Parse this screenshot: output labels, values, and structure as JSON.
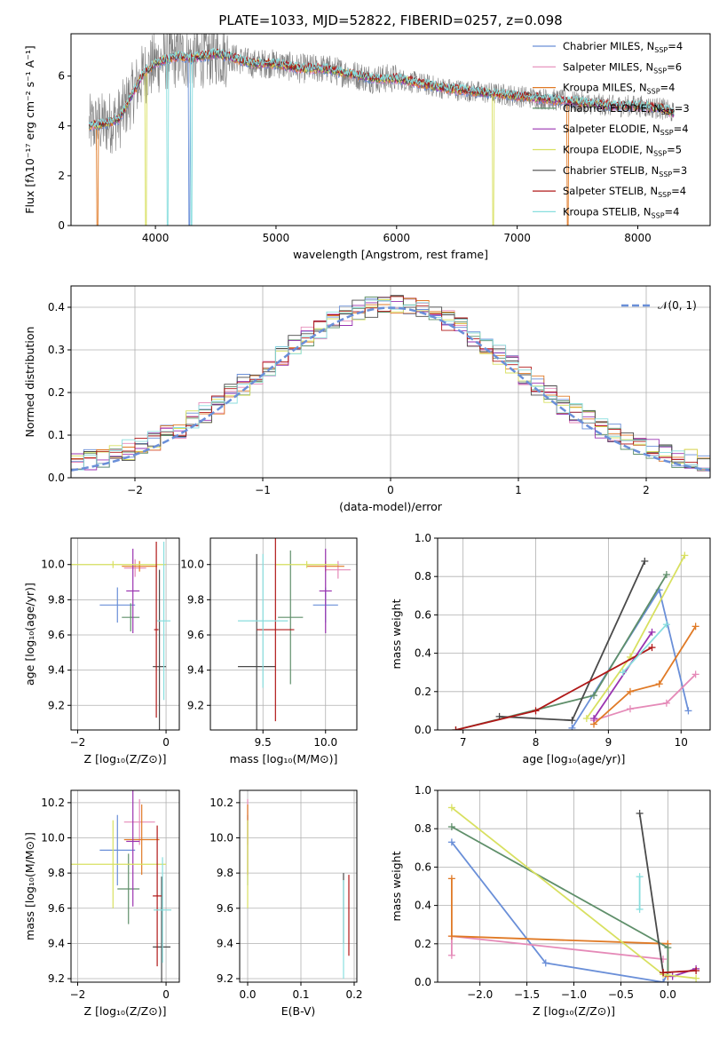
{
  "figure_title": "PLATE=1033, MJD=52822, FIBERID=0257, z=0.098",
  "colors": {
    "Chabrier MILES": "#6a8fd8",
    "Salpeter MILES": "#e58ab8",
    "Kroupa MILES": "#e07a26",
    "Chabrier ELODIE": "#5f8f6a",
    "Salpeter ELODIE": "#9a33b0",
    "Kroupa ELODIE": "#d8e060",
    "Chabrier STELIB": "#4a4a4a",
    "Salpeter STELIB": "#b01818",
    "Kroupa STELIB": "#88dede",
    "data": "#808080"
  },
  "chart_data": [
    {
      "id": "spectrum",
      "type": "line",
      "title": "PLATE=1033, MJD=52822, FIBERID=0257, z=0.098",
      "xlabel": "wavelength [Angstrom, rest frame]",
      "ylabel": "Flux [fλ10⁻¹⁷ erg cm⁻² s⁻¹ A⁻¹]",
      "xlim": [
        3300,
        8600
      ],
      "ylim": [
        0,
        7.7
      ],
      "xticks": [
        4000,
        5000,
        6000,
        7000,
        8000
      ],
      "yticks": [
        0,
        2,
        4,
        6
      ],
      "grid": false,
      "legend_position": "right",
      "legend": [
        {
          "name": "Chabrier MILES",
          "nssp": "N",
          "sub": "SSP",
          "val": "=4"
        },
        {
          "name": "Salpeter MILES",
          "nssp": "N",
          "sub": "SSP",
          "val": "=6"
        },
        {
          "name": "Kroupa MILES",
          "nssp": "N",
          "sub": "SSP",
          "val": "=4"
        },
        {
          "name": "Chabrier ELODIE",
          "nssp": "N",
          "sub": "SSP",
          "val": "=3"
        },
        {
          "name": "Salpeter ELODIE",
          "nssp": "N",
          "sub": "SSP",
          "val": "=4"
        },
        {
          "name": "Kroupa ELODIE",
          "nssp": "N",
          "sub": "SSP",
          "val": "=5"
        },
        {
          "name": "Chabrier STELIB",
          "nssp": "N",
          "sub": "SSP",
          "val": "=3"
        },
        {
          "name": "Salpeter STELIB",
          "nssp": "N",
          "sub": "SSP",
          "val": "=4"
        },
        {
          "name": "Kroupa STELIB",
          "nssp": "N",
          "sub": "SSP",
          "val": "=4"
        }
      ],
      "continuum": {
        "x": [
          3450,
          3600,
          3700,
          3800,
          3900,
          4000,
          4100,
          4200,
          4300,
          4400,
          4500,
          4600,
          4800,
          5000,
          5200,
          5400,
          5600,
          5800,
          6000,
          6200,
          6400,
          6600,
          6800,
          7000,
          7200,
          7400,
          7600,
          7800,
          8000,
          8200,
          8300
        ],
        "y": [
          4.0,
          4.1,
          4.3,
          5.2,
          6.1,
          6.5,
          6.7,
          6.8,
          6.7,
          6.8,
          6.9,
          6.8,
          6.5,
          6.5,
          6.3,
          6.3,
          6.1,
          5.9,
          5.9,
          5.7,
          5.5,
          5.4,
          5.3,
          5.2,
          5.1,
          5.0,
          4.9,
          4.8,
          4.8,
          4.7,
          4.5
        ]
      }
    },
    {
      "id": "residual_hist",
      "type": "histogram",
      "xlabel": "(data-model)/error",
      "ylabel": "Normed distribution",
      "xlim": [
        -2.5,
        2.5
      ],
      "ylim": [
        0,
        0.45
      ],
      "xticks": [
        -2,
        -1,
        0,
        1,
        2
      ],
      "yticks": [
        0.0,
        0.1,
        0.2,
        0.3,
        0.4
      ],
      "grid": true,
      "legend_label": "𝒩(0, 1)",
      "legend_position": "top-right",
      "reference_curve": {
        "mean": 0,
        "sigma": 1
      }
    },
    {
      "id": "age_vs_Z",
      "type": "errorbar",
      "xlabel": "Z [log₁₀(Z/Z⊙)]",
      "ylabel": "age  [log₁₀(age/yr)]",
      "xlim": [
        -2.15,
        0.3
      ],
      "ylim": [
        9.06,
        10.15
      ],
      "xticks": [
        -2,
        0
      ],
      "yticks": [
        9.2,
        9.4,
        9.6,
        9.8,
        10.0
      ],
      "grid": true,
      "points": [
        {
          "model": "Chabrier MILES",
          "x": -1.1,
          "xerr": 0.4,
          "y": 9.77,
          "yerr": 0.1
        },
        {
          "model": "Salpeter MILES",
          "x": -0.7,
          "xerr": 0.25,
          "y": 9.98,
          "yerr": 0.05
        },
        {
          "model": "Kroupa MILES",
          "x": -0.6,
          "xerr": 0.4,
          "y": 9.99,
          "yerr": 0.03
        },
        {
          "model": "Chabrier ELODIE",
          "x": -0.8,
          "xerr": 0.2,
          "y": 9.7,
          "yerr": 0.08
        },
        {
          "model": "Salpeter ELODIE",
          "x": -0.75,
          "xerr": 0.15,
          "y": 9.85,
          "yerr": 0.24
        },
        {
          "model": "Kroupa ELODIE",
          "x": -1.2,
          "xerr": 1.2,
          "y": 10.0,
          "yerr": 0.02
        },
        {
          "model": "Chabrier STELIB",
          "x": -0.15,
          "xerr": 0.15,
          "y": 9.42,
          "yerr": 0.55
        },
        {
          "model": "Salpeter STELIB",
          "x": -0.22,
          "xerr": 0.05,
          "y": 9.63,
          "yerr": 0.5
        },
        {
          "model": "Kroupa STELIB",
          "x": -0.05,
          "xerr": 0.15,
          "y": 9.68,
          "yerr": 0.45
        }
      ]
    },
    {
      "id": "age_vs_mass",
      "type": "errorbar",
      "xlabel": "mass [log₁₀(M/M⊙)]",
      "ylabel": "",
      "xlim": [
        9.08,
        10.25
      ],
      "ylim": [
        9.06,
        10.15
      ],
      "xticks": [
        9.5,
        10.0
      ],
      "yticks": [
        9.2,
        9.4,
        9.6,
        9.8,
        10.0
      ],
      "grid": true,
      "points": [
        {
          "model": "Chabrier MILES",
          "x": 10.0,
          "xerr": 0.1,
          "y": 9.77,
          "yerr": 0.1
        },
        {
          "model": "Salpeter MILES",
          "x": 10.1,
          "xerr": 0.1,
          "y": 9.97,
          "yerr": 0.05
        },
        {
          "model": "Kroupa MILES",
          "x": 10.0,
          "xerr": 0.15,
          "y": 9.99,
          "yerr": 0.03
        },
        {
          "model": "Chabrier ELODIE",
          "x": 9.72,
          "xerr": 0.1,
          "y": 9.7,
          "yerr": 0.38
        },
        {
          "model": "Salpeter ELODIE",
          "x": 10.0,
          "xerr": 0.05,
          "y": 9.85,
          "yerr": 0.24
        },
        {
          "model": "Kroupa ELODIE",
          "x": 9.85,
          "xerr": 0.25,
          "y": 10.0,
          "yerr": 0.02
        },
        {
          "model": "Chabrier STELIB",
          "x": 9.45,
          "xerr": 0.15,
          "y": 9.42,
          "yerr": 0.64
        },
        {
          "model": "Salpeter STELIB",
          "x": 9.6,
          "xerr": 0.15,
          "y": 9.63,
          "yerr": 0.52
        },
        {
          "model": "Kroupa STELIB",
          "x": 9.5,
          "xerr": 0.2,
          "y": 9.68,
          "yerr": 0.38
        }
      ]
    },
    {
      "id": "weight_vs_age",
      "type": "line",
      "xlabel": "age  [log₁₀(age/yr)]",
      "ylabel": "mass weight",
      "xlim": [
        6.65,
        10.4
      ],
      "ylim": [
        0,
        1.0
      ],
      "xticks": [
        7,
        8,
        9,
        10
      ],
      "yticks": [
        0.0,
        0.2,
        0.4,
        0.6,
        0.8,
        1.0
      ],
      "grid": true,
      "series": [
        {
          "model": "Chabrier MILES",
          "x": [
            8.5,
            9.7,
            10.1
          ],
          "y": [
            0.01,
            0.73,
            0.1
          ]
        },
        {
          "model": "Salpeter MILES",
          "x": [
            8.8,
            9.3,
            9.8,
            10.2
          ],
          "y": [
            0.05,
            0.11,
            0.14,
            0.29
          ]
        },
        {
          "model": "Kroupa MILES",
          "x": [
            8.8,
            9.3,
            9.7,
            10.2
          ],
          "y": [
            0.03,
            0.2,
            0.24,
            0.54
          ]
        },
        {
          "model": "Chabrier ELODIE",
          "x": [
            6.9,
            8.8,
            9.8
          ],
          "y": [
            0.0,
            0.18,
            0.81
          ]
        },
        {
          "model": "Salpeter ELODIE",
          "x": [
            8.8,
            9.6
          ],
          "y": [
            0.06,
            0.51
          ]
        },
        {
          "model": "Kroupa ELODIE",
          "x": [
            8.7,
            9.3,
            10.05
          ],
          "y": [
            0.06,
            0.38,
            0.91
          ]
        },
        {
          "model": "Chabrier STELIB",
          "x": [
            7.5,
            8.5,
            9.5
          ],
          "y": [
            0.07,
            0.05,
            0.88
          ]
        },
        {
          "model": "Salpeter STELIB",
          "x": [
            6.9,
            8.0,
            9.6
          ],
          "y": [
            0.0,
            0.1,
            0.43
          ]
        },
        {
          "model": "Kroupa STELIB",
          "x": [
            9.2,
            9.8
          ],
          "y": [
            0.3,
            0.55
          ]
        }
      ]
    },
    {
      "id": "mass_vs_Z",
      "type": "errorbar",
      "xlabel": "Z [log₁₀(Z/Z⊙)]",
      "ylabel": "mass [log₁₀(M/M⊙)]",
      "xlim": [
        -2.15,
        0.3
      ],
      "ylim": [
        9.18,
        10.27
      ],
      "xticks": [
        -2,
        0
      ],
      "yticks": [
        9.2,
        9.4,
        9.6,
        9.8,
        10.0,
        10.2
      ],
      "grid": true,
      "points": [
        {
          "model": "Chabrier MILES",
          "x": -1.1,
          "xerr": 0.4,
          "y": 9.93,
          "yerr": 0.2
        },
        {
          "model": "Salpeter MILES",
          "x": -0.6,
          "xerr": 0.35,
          "y": 10.09,
          "yerr": 0.13
        },
        {
          "model": "Kroupa MILES",
          "x": -0.55,
          "xerr": 0.4,
          "y": 9.99,
          "yerr": 0.2
        },
        {
          "model": "Chabrier ELODIE",
          "x": -0.85,
          "xerr": 0.25,
          "y": 9.71,
          "yerr": 0.2
        },
        {
          "model": "Salpeter ELODIE",
          "x": -0.75,
          "xerr": 0.15,
          "y": 9.98,
          "yerr": 0.37
        },
        {
          "model": "Kroupa ELODIE",
          "x": -1.2,
          "xerr": 1.2,
          "y": 9.85,
          "yerr": 0.25
        },
        {
          "model": "Chabrier STELIB",
          "x": -0.1,
          "xerr": 0.2,
          "y": 9.38,
          "yerr": 0.4
        },
        {
          "model": "Salpeter STELIB",
          "x": -0.2,
          "xerr": 0.1,
          "y": 9.67,
          "yerr": 0.4
        },
        {
          "model": "Kroupa STELIB",
          "x": -0.08,
          "xerr": 0.2,
          "y": 9.59,
          "yerr": 0.3
        }
      ]
    },
    {
      "id": "mass_vs_EBV",
      "type": "errorbar",
      "xlabel": "E(B-V)",
      "ylabel": "",
      "xlim": [
        -0.015,
        0.205
      ],
      "ylim": [
        9.18,
        10.27
      ],
      "xticks": [
        0.0,
        0.1,
        0.2
      ],
      "yticks": [
        9.2,
        9.4,
        9.6,
        9.8,
        10.0,
        10.2
      ],
      "grid": true,
      "points": [
        {
          "model": "Chabrier MILES",
          "x": 0.0,
          "xerr": 0.0,
          "y": 9.93,
          "yerr": 0.2
        },
        {
          "model": "Salpeter MILES",
          "x": 0.0,
          "xerr": 0.0,
          "y": 10.09,
          "yerr": 0.13
        },
        {
          "model": "Kroupa MILES",
          "x": 0.0,
          "xerr": 0.0,
          "y": 9.99,
          "yerr": 0.2
        },
        {
          "model": "Kroupa ELODIE",
          "x": 0.0,
          "xerr": 0.0,
          "y": 9.85,
          "yerr": 0.25
        },
        {
          "model": "Chabrier STELIB",
          "x": 0.18,
          "xerr": 0.0,
          "y": 9.6,
          "yerr": 0.2
        },
        {
          "model": "Salpeter STELIB",
          "x": 0.19,
          "xerr": 0.0,
          "y": 9.56,
          "yerr": 0.23
        },
        {
          "model": "Kroupa STELIB",
          "x": 0.18,
          "xerr": 0.0,
          "y": 9.48,
          "yerr": 0.28
        }
      ]
    },
    {
      "id": "weight_vs_Z",
      "type": "line",
      "xlabel": "Z [log₁₀(Z/Z⊙)]",
      "ylabel": "mass weight",
      "xlim": [
        -2.45,
        0.45
      ],
      "ylim": [
        0,
        1.0
      ],
      "xticks": [
        -2.0,
        -1.5,
        -1.0,
        -0.5,
        0.0
      ],
      "yticks": [
        0.0,
        0.2,
        0.4,
        0.6,
        0.8,
        1.0
      ],
      "grid": true,
      "series": [
        {
          "model": "Chabrier MILES",
          "x": [
            -2.3,
            -1.3,
            -0.05,
            0.0
          ],
          "y": [
            0.73,
            0.1,
            0.0,
            0.05
          ]
        },
        {
          "model": "Salpeter MILES",
          "x": [
            -2.3,
            -2.3,
            -0.05
          ],
          "y": [
            0.14,
            0.24,
            0.12
          ]
        },
        {
          "model": "Kroupa MILES",
          "x": [
            -2.3,
            -2.3,
            0.0,
            0.0
          ],
          "y": [
            0.54,
            0.24,
            0.2,
            0.03
          ]
        },
        {
          "model": "Chabrier ELODIE",
          "x": [
            -2.3,
            0.0,
            0.0
          ],
          "y": [
            0.81,
            0.18,
            0.05
          ]
        },
        {
          "model": "Salpeter ELODIE",
          "x": [
            0.05,
            0.3
          ],
          "y": [
            0.03,
            0.07
          ]
        },
        {
          "model": "Kroupa ELODIE",
          "x": [
            -2.3,
            -0.05,
            0.3
          ],
          "y": [
            0.91,
            0.04,
            0.02
          ]
        },
        {
          "model": "Chabrier STELIB",
          "x": [
            -0.3,
            -0.05
          ],
          "y": [
            0.88,
            0.05
          ]
        },
        {
          "model": "Salpeter STELIB",
          "x": [
            -0.05,
            0.3
          ],
          "y": [
            0.05,
            0.06
          ]
        },
        {
          "model": "Kroupa STELIB",
          "x": [
            -0.3,
            -0.3
          ],
          "y": [
            0.55,
            0.38
          ]
        }
      ]
    }
  ]
}
